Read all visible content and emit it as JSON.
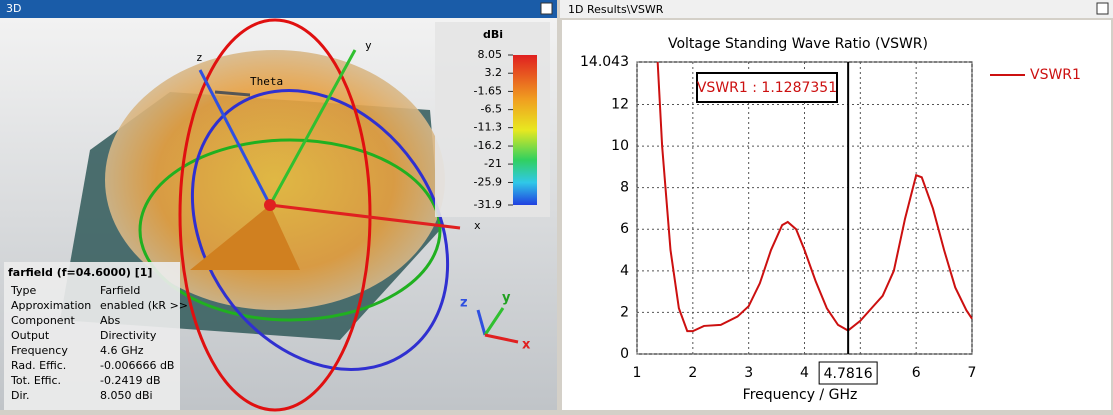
{
  "left_panel": {
    "title": "3D",
    "axis_labels": {
      "z": "z",
      "y": "y",
      "x": "x",
      "theta": "Theta"
    },
    "triad_labels": {
      "z": "z",
      "y": "y",
      "x": "x"
    },
    "colorbar": {
      "unit": "dBi",
      "ticks": [
        8.05,
        3.2,
        -1.65,
        -6.5,
        -11.3,
        -16.2,
        -21,
        -25.9,
        -31.9
      ]
    },
    "info": {
      "title": "farfield (f=04.6000) [1]",
      "rows": [
        [
          "Type",
          "Farfield"
        ],
        [
          "Approximation",
          "enabled (kR >>"
        ],
        [
          "Component",
          "Abs"
        ],
        [
          "Output",
          "Directivity"
        ],
        [
          "Frequency",
          "4.6 GHz"
        ],
        [
          "Rad. Effic.",
          "-0.006666 dB"
        ],
        [
          "Tot. Effic.",
          "-0.2419 dB"
        ],
        [
          "Dir.",
          "8.050 dBi"
        ]
      ]
    }
  },
  "right_panel": {
    "title": "1D Results\\VSWR",
    "chart_data": {
      "type": "line",
      "title": "Voltage Standing Wave Ratio (VSWR)",
      "x_label": "Frequency / GHz",
      "xlim": [
        1,
        7
      ],
      "xticks": [
        1,
        2,
        3,
        4,
        5,
        6,
        7
      ],
      "ylim": [
        0,
        14.043
      ],
      "yticks": [
        0,
        2,
        4,
        6,
        8,
        10,
        12,
        14.043
      ],
      "grid": true,
      "x": [
        1.37,
        1.45,
        1.6,
        1.75,
        1.9,
        2.0,
        2.2,
        2.5,
        2.8,
        3.0,
        3.2,
        3.4,
        3.6,
        3.7,
        3.85,
        4.0,
        4.2,
        4.4,
        4.6,
        4.78,
        5.0,
        5.2,
        5.4,
        5.6,
        5.8,
        6.0,
        6.1,
        6.3,
        6.5,
        6.7,
        6.9,
        7.0
      ],
      "series": [
        {
          "name": "VSWR1",
          "color": "#cc1010",
          "values": [
            14.043,
            10,
            5,
            2.2,
            1.1,
            1.1,
            1.35,
            1.4,
            1.8,
            2.3,
            3.4,
            5.0,
            6.2,
            6.35,
            6.0,
            5.0,
            3.5,
            2.2,
            1.4,
            1.13,
            1.6,
            2.2,
            2.8,
            4.0,
            6.5,
            8.6,
            8.5,
            7.0,
            5.0,
            3.2,
            2.1,
            1.7
          ]
        }
      ],
      "marker": {
        "x": 4.7816,
        "label": "VSWR1 : 1.1287351"
      }
    }
  }
}
